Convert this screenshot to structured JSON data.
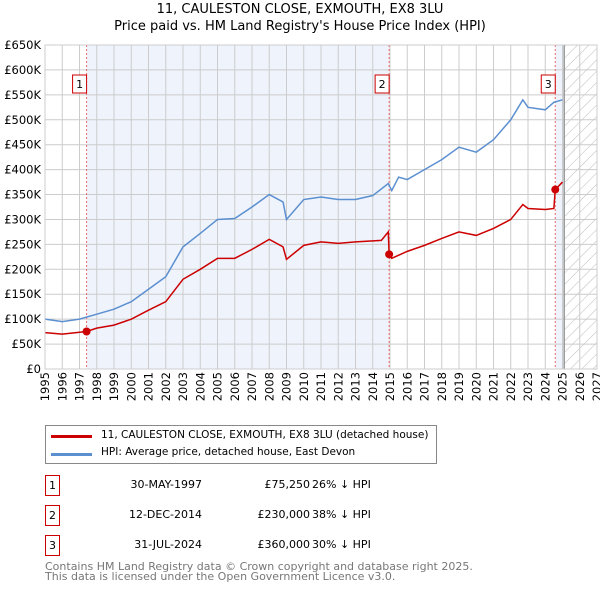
{
  "chart_data": {
    "type": "line",
    "title": "11, CAULESTON CLOSE, EXMOUTH, EX8 3LU",
    "subtitle": "Price paid vs. HM Land Registry's House Price Index (HPI)",
    "xlim": [
      1995,
      2027
    ],
    "ylim": [
      0,
      650000
    ],
    "xticks": [
      "1995",
      "1996",
      "1997",
      "1998",
      "1999",
      "2000",
      "2001",
      "2002",
      "2003",
      "2004",
      "2005",
      "2006",
      "2007",
      "2008",
      "2009",
      "2010",
      "2011",
      "2012",
      "2013",
      "2014",
      "2015",
      "2016",
      "2017",
      "2018",
      "2019",
      "2020",
      "2021",
      "2022",
      "2023",
      "2024",
      "2025",
      "2026",
      "2027"
    ],
    "yticks": [
      "£0",
      "£50K",
      "£100K",
      "£150K",
      "£200K",
      "£250K",
      "£300K",
      "£350K",
      "£400K",
      "£450K",
      "£500K",
      "£550K",
      "£600K",
      "£650K"
    ],
    "grid": true,
    "series": [
      {
        "name": "11, CAULESTON CLOSE, EXMOUTH, EX8 3LU (detached house)",
        "color": "#cc0000",
        "x": [
          1995,
          1996,
          1997.41,
          1998,
          1999,
          2000,
          2001,
          2002,
          2003,
          2004,
          2005,
          2006,
          2007,
          2008,
          2008.8,
          2009,
          2010,
          2011,
          2012,
          2013,
          2014.5,
          2014.9,
          2014.95,
          2015.1,
          2016,
          2017,
          2018,
          2019,
          2020,
          2021,
          2022,
          2022.7,
          2023,
          2024,
          2024.5,
          2024.58,
          2025
        ],
        "y": [
          73000,
          70000,
          75250,
          82000,
          88000,
          100000,
          118000,
          135000,
          180000,
          200000,
          222000,
          222000,
          240000,
          260000,
          245000,
          220000,
          248000,
          255000,
          252000,
          255000,
          258000,
          275000,
          230000,
          222000,
          236000,
          248000,
          262000,
          275000,
          268000,
          282000,
          300000,
          330000,
          322000,
          320000,
          322000,
          360000,
          375000
        ]
      },
      {
        "name": "HPI: Average price, detached house, East Devon",
        "color": "#5b8fd0",
        "x": [
          1995,
          1996,
          1997,
          1998,
          1999,
          2000,
          2001,
          2002,
          2003,
          2004,
          2005,
          2006,
          2007,
          2008,
          2008.8,
          2009,
          2010,
          2011,
          2012,
          2013,
          2014,
          2014.9,
          2015.1,
          2015.5,
          2016,
          2017,
          2018,
          2019,
          2020,
          2021,
          2022,
          2022.7,
          2023,
          2024,
          2024.5,
          2025
        ],
        "y": [
          100000,
          95000,
          100000,
          110000,
          120000,
          135000,
          160000,
          185000,
          245000,
          272000,
          300000,
          302000,
          325000,
          350000,
          335000,
          300000,
          340000,
          345000,
          340000,
          340000,
          348000,
          372000,
          358000,
          385000,
          380000,
          400000,
          420000,
          445000,
          435000,
          460000,
          500000,
          540000,
          525000,
          520000,
          535000,
          540000
        ]
      }
    ],
    "sales": [
      {
        "label": "1",
        "x": 1997.41,
        "y": 75250,
        "date": "30-MAY-1997",
        "price": "£75,250",
        "hpi": "26% ↓ HPI"
      },
      {
        "label": "2",
        "x": 2014.95,
        "y": 230000,
        "date": "12-DEC-2014",
        "price": "£230,000",
        "hpi": "38% ↓ HPI"
      },
      {
        "label": "3",
        "x": 2024.58,
        "y": 360000,
        "date": "31-JUL-2024",
        "price": "£360,000",
        "hpi": "30% ↓ HPI"
      }
    ],
    "forecast_start": 2025.1
  },
  "footer": {
    "line1": "Contains HM Land Registry data © Crown copyright and database right 2025.",
    "line2": "This data is licensed under the Open Government Licence v3.0."
  }
}
